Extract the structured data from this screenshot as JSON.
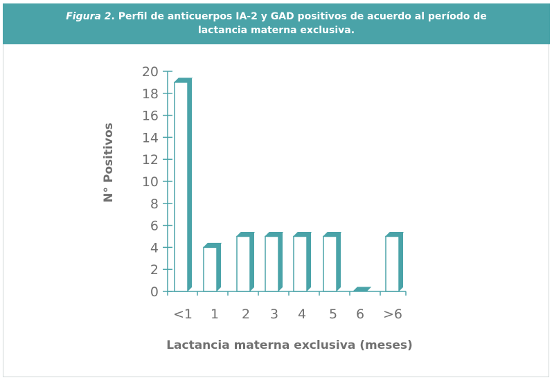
{
  "caption": {
    "figure_label": "Figura 2",
    "text_line1": ". Perfil de anticuerpos IA-2 y GAD positivos de acuerdo al período de",
    "text_line2": "lactancia materna exclusiva."
  },
  "colors": {
    "accent": "#4aa3a8",
    "bar_side": "#4aa3a8",
    "bar_front": "#ffffff",
    "axis": "#4aa3a8",
    "text": "#707070"
  },
  "chart_data": {
    "type": "bar",
    "title": "Perfil de anticuerpos IA-2 y GAD positivos de acuerdo al período de lactancia materna exclusiva.",
    "categories": [
      "<1",
      "1",
      "2",
      "3",
      "4",
      "5",
      "6",
      ">6"
    ],
    "values": [
      19,
      4,
      5,
      5,
      5,
      5,
      0,
      5
    ],
    "xlabel": "Lactancia materna exclusiva (meses)",
    "ylabel": "N° Positivos",
    "ylim": [
      0,
      20
    ],
    "yticks": [
      0,
      2,
      4,
      6,
      8,
      10,
      12,
      14,
      16,
      18,
      20
    ],
    "grid": false
  }
}
